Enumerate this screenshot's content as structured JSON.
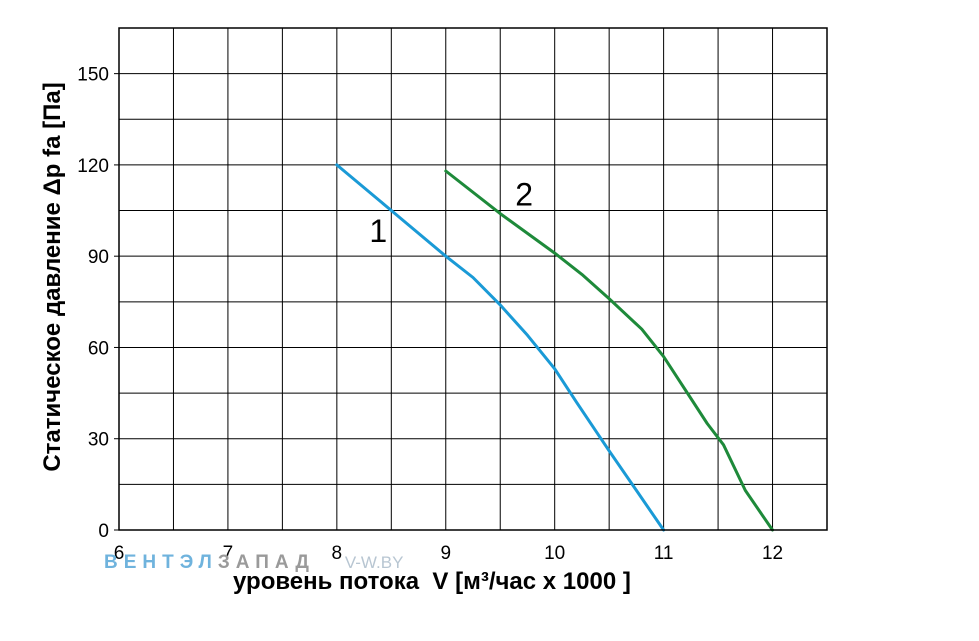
{
  "chart_data": {
    "type": "line",
    "xlabel": "уровень потока  V [м³/час x 1000 ]",
    "ylabel": "Статическое давление  Δp fa [Па]",
    "xlim": [
      6,
      12.5
    ],
    "ylim": [
      0,
      165
    ],
    "xticks": [
      "6",
      "7",
      "8",
      "9",
      "10",
      "11",
      "12"
    ],
    "yticks": [
      "0",
      "30",
      "60",
      "90",
      "120",
      "150"
    ],
    "grid": true,
    "series": [
      {
        "name": "1",
        "color": "#1a9ad6",
        "points": [
          [
            8.0,
            120
          ],
          [
            8.5,
            105
          ],
          [
            9.0,
            90
          ],
          [
            9.25,
            83
          ],
          [
            9.5,
            74
          ],
          [
            9.75,
            64
          ],
          [
            10.0,
            53
          ],
          [
            10.2,
            42
          ],
          [
            10.5,
            26
          ],
          [
            10.75,
            13
          ],
          [
            11.0,
            0
          ]
        ]
      },
      {
        "name": "2",
        "color": "#1e8a3a",
        "points": [
          [
            9.0,
            118
          ],
          [
            9.5,
            104
          ],
          [
            10.0,
            91
          ],
          [
            10.25,
            84
          ],
          [
            10.5,
            76
          ],
          [
            10.8,
            66
          ],
          [
            11.0,
            57
          ],
          [
            11.2,
            46
          ],
          [
            11.4,
            35
          ],
          [
            11.55,
            28
          ],
          [
            11.75,
            13
          ],
          [
            12.0,
            0
          ]
        ]
      }
    ],
    "annotations": [
      {
        "text": "1",
        "x": 8.38,
        "y": 98
      },
      {
        "text": "2",
        "x": 9.72,
        "y": 110
      }
    ]
  },
  "watermark": {
    "part1": "ВЕНТЭЛ",
    "part2": "ЗАПАД",
    "part3": "V-W.BY"
  }
}
